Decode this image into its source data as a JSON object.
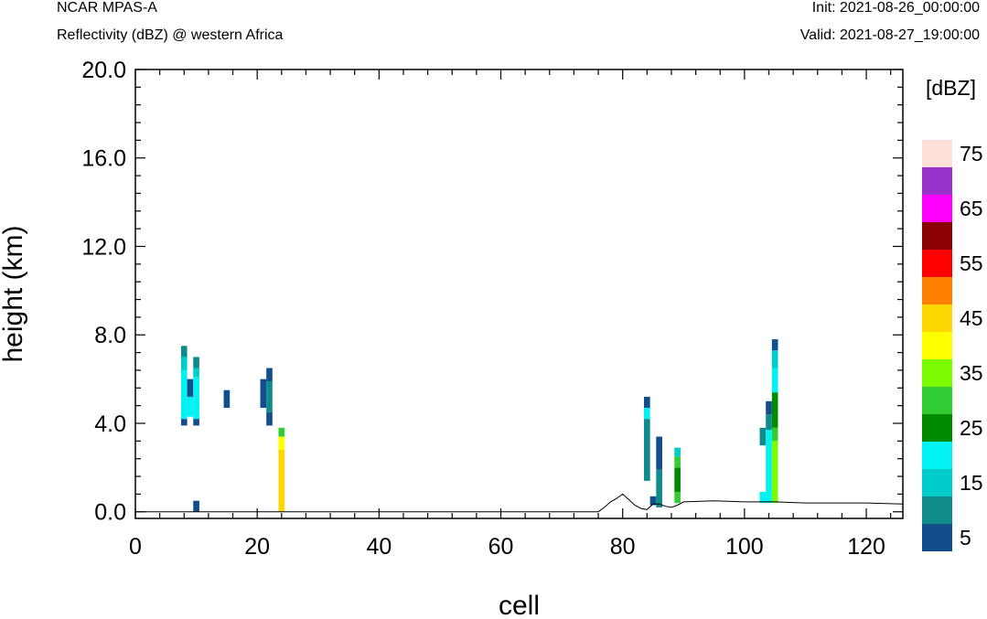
{
  "header": {
    "model": "NCAR MPAS-A",
    "field": "Reflectivity (dBZ) @ western Africa",
    "init": "Init: 2021-08-26_00:00:00",
    "valid": "Valid: 2021-08-27_19:00:00"
  },
  "chart_data": {
    "type": "heatmap",
    "xlabel": "cell",
    "ylabel": "height (km)",
    "xlim": [
      0,
      126
    ],
    "ylim": [
      -0.3,
      20.0
    ],
    "x_ticks": [
      0,
      20,
      40,
      60,
      80,
      100,
      120
    ],
    "x_tick_labels": [
      "0",
      "20",
      "40",
      "60",
      "80",
      "100",
      "120"
    ],
    "y_ticks": [
      0,
      4,
      8,
      12,
      16,
      20
    ],
    "y_tick_labels": [
      "0.0",
      "4.0",
      "8.0",
      "12.0",
      "16.0",
      "20.0"
    ],
    "colorbar": {
      "unit": "[dBZ]",
      "levels": [
        5,
        10,
        15,
        20,
        25,
        30,
        35,
        40,
        45,
        50,
        55,
        60,
        65,
        70,
        75
      ],
      "labels": [
        "5",
        "15",
        "25",
        "35",
        "45",
        "55",
        "65",
        "75"
      ],
      "colors": [
        "#124e8c",
        "#0f8b8b",
        "#00cccc",
        "#00f2f2",
        "#008a00",
        "#32cd32",
        "#7cfc00",
        "#ffff00",
        "#ffd700",
        "#ff8000",
        "#ff0000",
        "#8b0000",
        "#ff00ff",
        "#9932cc",
        "#ffe0d8"
      ]
    },
    "cells": [
      {
        "x": 8,
        "y0": 3.9,
        "y1": 4.2,
        "dbz": 5
      },
      {
        "x": 8,
        "y0": 4.2,
        "y1": 6.4,
        "dbz": 20
      },
      {
        "x": 8,
        "y0": 6.4,
        "y1": 7.0,
        "dbz": 15
      },
      {
        "x": 8,
        "y0": 7.0,
        "y1": 7.5,
        "dbz": 10
      },
      {
        "x": 9,
        "y0": 5.2,
        "y1": 6.0,
        "dbz": 5
      },
      {
        "x": 9,
        "y0": 4.3,
        "y1": 5.2,
        "dbz": 20
      },
      {
        "x": 10,
        "y0": 3.9,
        "y1": 4.2,
        "dbz": 5
      },
      {
        "x": 10,
        "y0": 4.2,
        "y1": 6.1,
        "dbz": 20
      },
      {
        "x": 10,
        "y0": 6.1,
        "y1": 6.5,
        "dbz": 15
      },
      {
        "x": 10,
        "y0": 6.5,
        "y1": 7.0,
        "dbz": 10
      },
      {
        "x": 10,
        "y0": 0.0,
        "y1": 0.5,
        "dbz": 5
      },
      {
        "x": 15,
        "y0": 4.7,
        "y1": 5.5,
        "dbz": 5
      },
      {
        "x": 21,
        "y0": 4.7,
        "y1": 6.0,
        "dbz": 5
      },
      {
        "x": 22,
        "y0": 3.9,
        "y1": 4.5,
        "dbz": 5
      },
      {
        "x": 22,
        "y0": 4.5,
        "y1": 5.9,
        "dbz": 10
      },
      {
        "x": 22,
        "y0": 5.9,
        "y1": 6.5,
        "dbz": 5
      },
      {
        "x": 24,
        "y0": 0.0,
        "y1": 2.8,
        "dbz": 45
      },
      {
        "x": 24,
        "y0": 2.8,
        "y1": 3.4,
        "dbz": 40
      },
      {
        "x": 24,
        "y0": 3.4,
        "y1": 3.8,
        "dbz": 30
      },
      {
        "x": 84,
        "y0": 1.4,
        "y1": 4.2,
        "dbz": 10
      },
      {
        "x": 84,
        "y0": 4.2,
        "y1": 4.7,
        "dbz": 20
      },
      {
        "x": 84,
        "y0": 4.7,
        "y1": 5.2,
        "dbz": 5
      },
      {
        "x": 85,
        "y0": 0.3,
        "y1": 0.7,
        "dbz": 5
      },
      {
        "x": 86,
        "y0": 0.2,
        "y1": 1.9,
        "dbz": 10
      },
      {
        "x": 86,
        "y0": 1.9,
        "y1": 3.4,
        "dbz": 5
      },
      {
        "x": 89,
        "y0": 0.4,
        "y1": 0.9,
        "dbz": 30
      },
      {
        "x": 89,
        "y0": 0.9,
        "y1": 2.0,
        "dbz": 25
      },
      {
        "x": 89,
        "y0": 2.0,
        "y1": 2.5,
        "dbz": 30
      },
      {
        "x": 89,
        "y0": 2.5,
        "y1": 2.9,
        "dbz": 15
      },
      {
        "x": 103,
        "y0": 0.4,
        "y1": 0.9,
        "dbz": 20
      },
      {
        "x": 103,
        "y0": 3.0,
        "y1": 3.8,
        "dbz": 10
      },
      {
        "x": 104,
        "y0": 0.4,
        "y1": 3.7,
        "dbz": 20
      },
      {
        "x": 104,
        "y0": 3.7,
        "y1": 4.4,
        "dbz": 10
      },
      {
        "x": 104,
        "y0": 4.4,
        "y1": 5.0,
        "dbz": 5
      },
      {
        "x": 105,
        "y0": 0.4,
        "y1": 3.2,
        "dbz": 35
      },
      {
        "x": 105,
        "y0": 3.2,
        "y1": 3.8,
        "dbz": 30
      },
      {
        "x": 105,
        "y0": 3.8,
        "y1": 5.4,
        "dbz": 25
      },
      {
        "x": 105,
        "y0": 5.4,
        "y1": 6.5,
        "dbz": 20
      },
      {
        "x": 105,
        "y0": 6.5,
        "y1": 7.3,
        "dbz": 15
      },
      {
        "x": 105,
        "y0": 7.3,
        "y1": 7.8,
        "dbz": 5
      }
    ],
    "terrain": {
      "x": [
        0,
        76,
        77,
        78,
        79,
        80,
        81,
        82,
        83,
        84,
        85,
        86,
        87,
        88,
        89,
        90,
        95,
        100,
        105,
        110,
        115,
        120,
        126
      ],
      "y": [
        0.0,
        0.0,
        0.2,
        0.45,
        0.6,
        0.8,
        0.55,
        0.3,
        0.15,
        0.1,
        0.35,
        0.35,
        0.25,
        0.2,
        0.3,
        0.45,
        0.5,
        0.45,
        0.45,
        0.4,
        0.4,
        0.4,
        0.35
      ]
    }
  }
}
